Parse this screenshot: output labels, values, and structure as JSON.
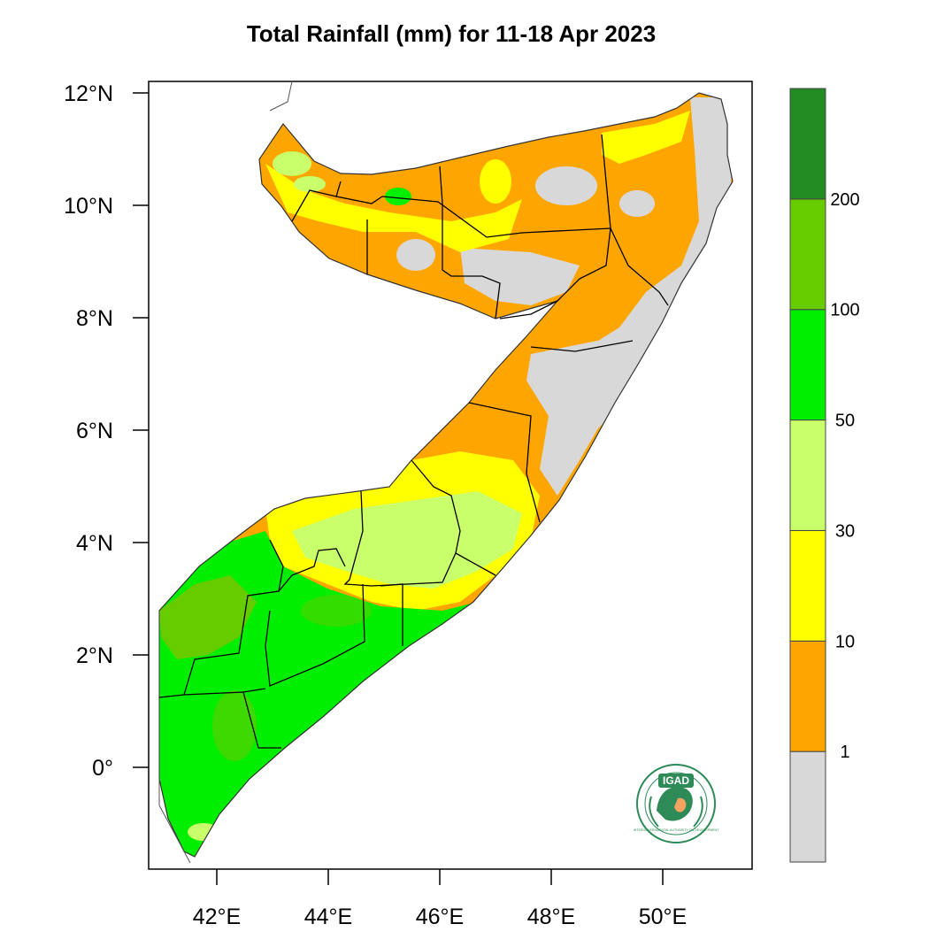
{
  "map": {
    "title": "Total Rainfall (mm) for 11-18 Apr 2023",
    "lon_range": [
      40.8,
      51.6
    ],
    "lat_range": [
      -1.8,
      12.2
    ],
    "lat_ticks": [
      {
        "value": 12,
        "label": "12°N"
      },
      {
        "value": 10,
        "label": "10°N"
      },
      {
        "value": 8,
        "label": "8°N"
      },
      {
        "value": 6,
        "label": "6°N"
      },
      {
        "value": 4,
        "label": "4°N"
      },
      {
        "value": 2,
        "label": "2°N"
      },
      {
        "value": 0,
        "label": "0°"
      }
    ],
    "lon_ticks": [
      {
        "value": 42,
        "label": "42°E"
      },
      {
        "value": 44,
        "label": "44°E"
      },
      {
        "value": 46,
        "label": "46°E"
      },
      {
        "value": 48,
        "label": "48°E"
      },
      {
        "value": 50,
        "label": "50°E"
      }
    ]
  },
  "colorbar": {
    "classes": [
      {
        "color": "#d8d8d8"
      },
      {
        "color": "#ffa500"
      },
      {
        "color": "#ffff00"
      },
      {
        "color": "#c8ff6a"
      },
      {
        "color": "#00ee00"
      },
      {
        "color": "#66cc00"
      },
      {
        "color": "#228b22"
      }
    ],
    "labels": [
      "1",
      "10",
      "30",
      "50",
      "100",
      "200"
    ]
  },
  "logo": {
    "text": "IGAD",
    "ring_text": "INTERGOVERNMENTAL AUTHORITY ON DEVELOPMENT",
    "icon": "igad-logo-icon"
  }
}
